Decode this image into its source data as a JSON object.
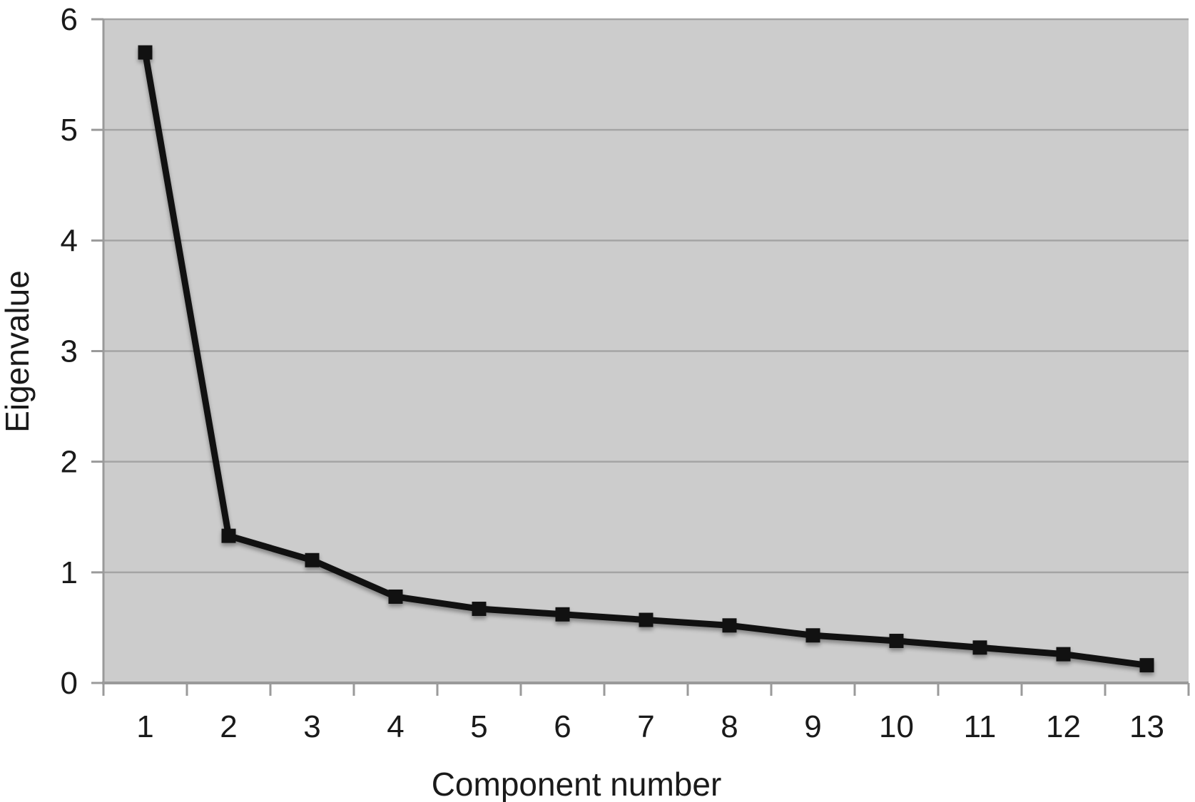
{
  "chart_data": {
    "type": "line",
    "title": "",
    "xlabel": "Component number",
    "ylabel": "Eigenvalue",
    "x": [
      1,
      2,
      3,
      4,
      5,
      6,
      7,
      8,
      9,
      10,
      11,
      12,
      13
    ],
    "xtick_labels": [
      "1",
      "2",
      "3",
      "4",
      "5",
      "6",
      "7",
      "8",
      "9",
      "10",
      "11",
      "12",
      "13"
    ],
    "values": [
      5.7,
      1.33,
      1.11,
      0.78,
      0.67,
      0.62,
      0.57,
      0.52,
      0.43,
      0.38,
      0.32,
      0.26,
      0.16
    ],
    "ylim": [
      0,
      6
    ],
    "yticks": [
      0,
      1,
      2,
      3,
      4,
      5,
      6
    ],
    "grid": true,
    "legend": false,
    "marker": "square",
    "colors": {
      "line": "#111111",
      "marker": "#111111",
      "plot_background": "#cccccc",
      "gridline": "#a4a4a4",
      "axis": "#9a9a9a",
      "text": "#1a1a1a"
    }
  }
}
